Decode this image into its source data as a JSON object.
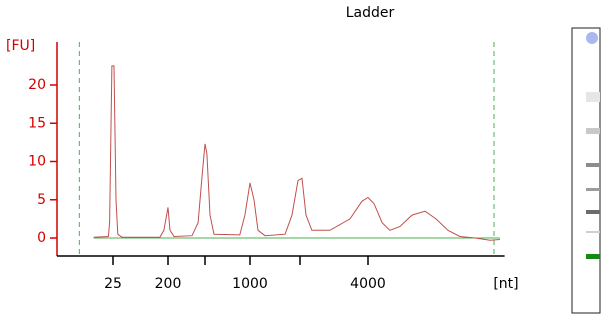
{
  "chart_data": {
    "type": "line",
    "title": "Ladder",
    "ylabel": "[FU]",
    "xlabel": "[nt]",
    "log_x": true,
    "grid": false,
    "color": "#c0504d",
    "axis_color": "#d40000",
    "marker_color": "#4caf50",
    "x": [
      12,
      21,
      22,
      24,
      26,
      28,
      30,
      35,
      147,
      171,
      200,
      210,
      232,
      362,
      421,
      464,
      500,
      515,
      540,
      574,
      855,
      924,
      1000,
      1057,
      1117,
      1231,
      1626,
      1791,
      1946,
      2041,
      2127,
      2259,
      2714,
      3328,
      3758,
      4000,
      4254,
      4617,
      5000,
      5541,
      6264,
      7150,
      8000,
      9040,
      10210,
      11900,
      13880,
      15350
    ],
    "values": [
      0.1,
      0.2,
      2,
      22.5,
      22.5,
      5,
      0.5,
      0.1,
      0.1,
      1,
      4,
      1,
      0.2,
      0.3,
      2,
      8,
      12.3,
      11,
      3,
      0.5,
      0.4,
      3,
      7.2,
      5,
      1,
      0.3,
      0.5,
      3,
      7.5,
      7.8,
      3,
      1,
      1,
      2.5,
      4.8,
      5.3,
      4.5,
      2,
      1,
      1.5,
      3,
      3.5,
      2.5,
      1,
      0.2,
      0,
      -0.3,
      -0.2
    ],
    "markers": [
      7,
      14450
    ],
    "xlim": [
      3,
      16100
    ],
    "xticks": [
      25,
      200,
      {
        "value": 500,
        "label": null
      },
      1000,
      {
        "value": 2000,
        "label": null
      },
      4000
    ],
    "ylim": [
      -2.4,
      25.6
    ],
    "yticks": [
      0,
      5,
      10,
      15,
      20
    ]
  }
}
